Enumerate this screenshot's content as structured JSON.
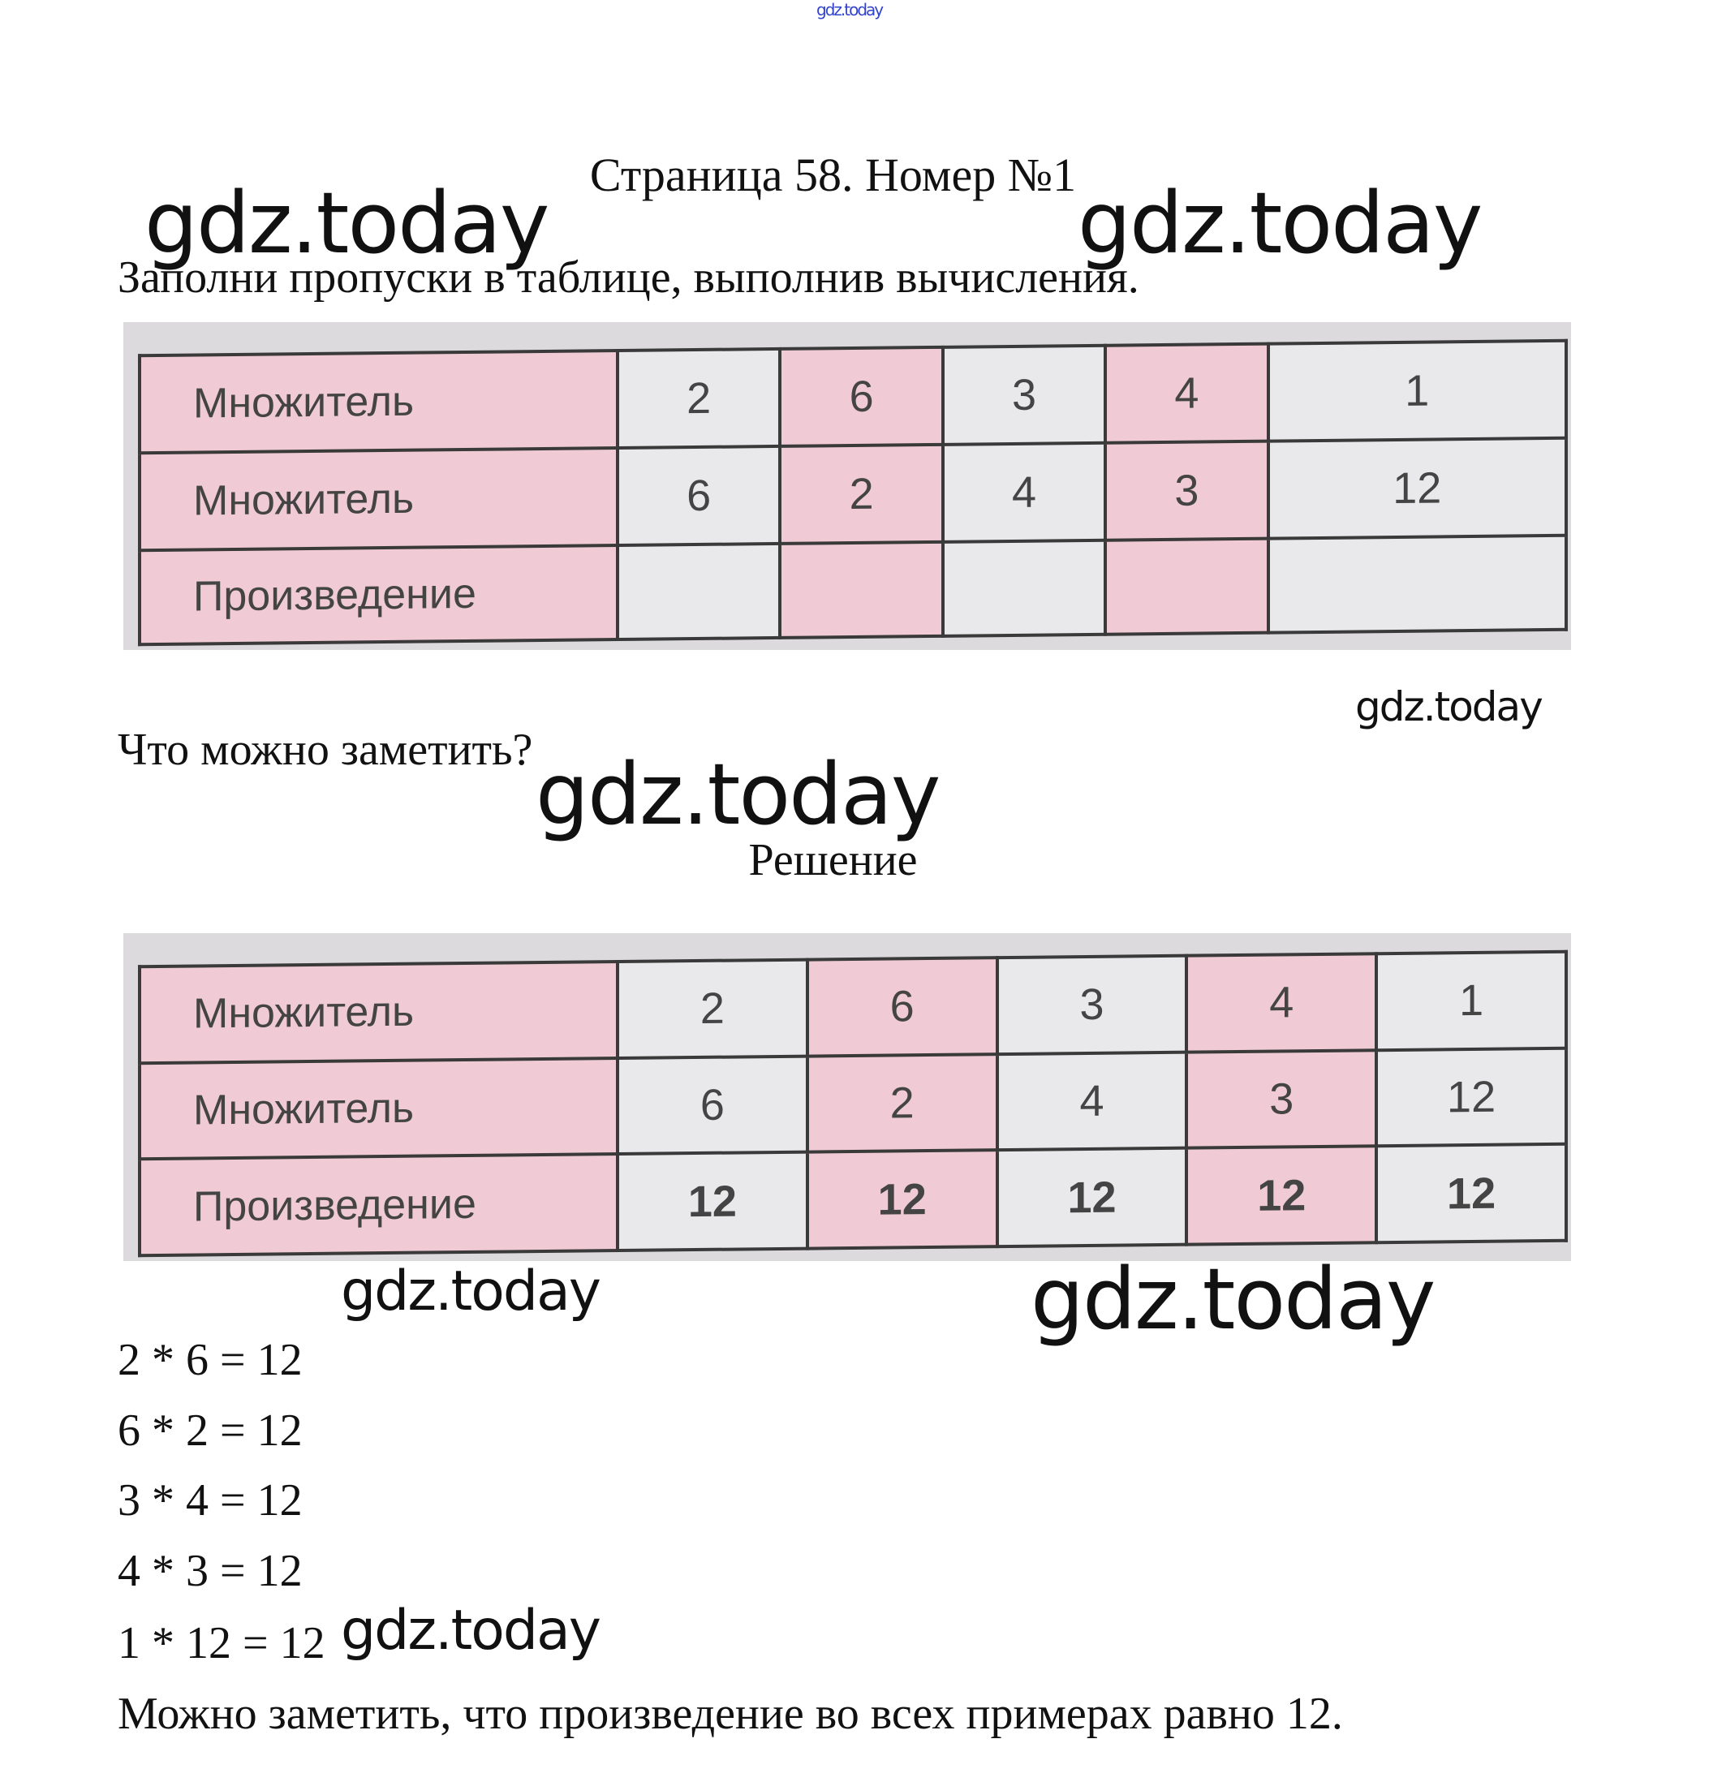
{
  "header_link": "gdz.today",
  "title": "Страница 58. Номер №1",
  "task": "Заполни пропуски в таблице, выполнив вычисления.",
  "question": "Что можно заметить?",
  "solution_heading": "Решение",
  "watermark": "gdz.today",
  "colors": {
    "pink": "#f0cbd6",
    "grey": "#e9e8ea",
    "link": "#3344cc"
  },
  "table_task": {
    "rows": [
      {
        "label": "Множитель",
        "cells": [
          "2",
          "6",
          "3",
          "4",
          "1"
        ]
      },
      {
        "label": "Множитель",
        "cells": [
          "6",
          "2",
          "4",
          "3",
          "12"
        ]
      },
      {
        "label": "Произведение",
        "cells": [
          "",
          "",
          "",
          "",
          ""
        ]
      }
    ]
  },
  "table_solution": {
    "rows": [
      {
        "label": "Множитель",
        "cells": [
          "2",
          "6",
          "3",
          "4",
          "1"
        ]
      },
      {
        "label": "Множитель",
        "cells": [
          "6",
          "2",
          "4",
          "3",
          "12"
        ]
      },
      {
        "label": "Произведение",
        "cells": [
          "12",
          "12",
          "12",
          "12",
          "12"
        ]
      }
    ]
  },
  "equations": [
    "2 * 6 = 12",
    "6 * 2 = 12",
    "3 * 4 = 12",
    "4 * 3 = 12",
    "1 * 12 = 12"
  ],
  "conclusion": "Можно заметить, что произведение во всех примерах равно 12."
}
